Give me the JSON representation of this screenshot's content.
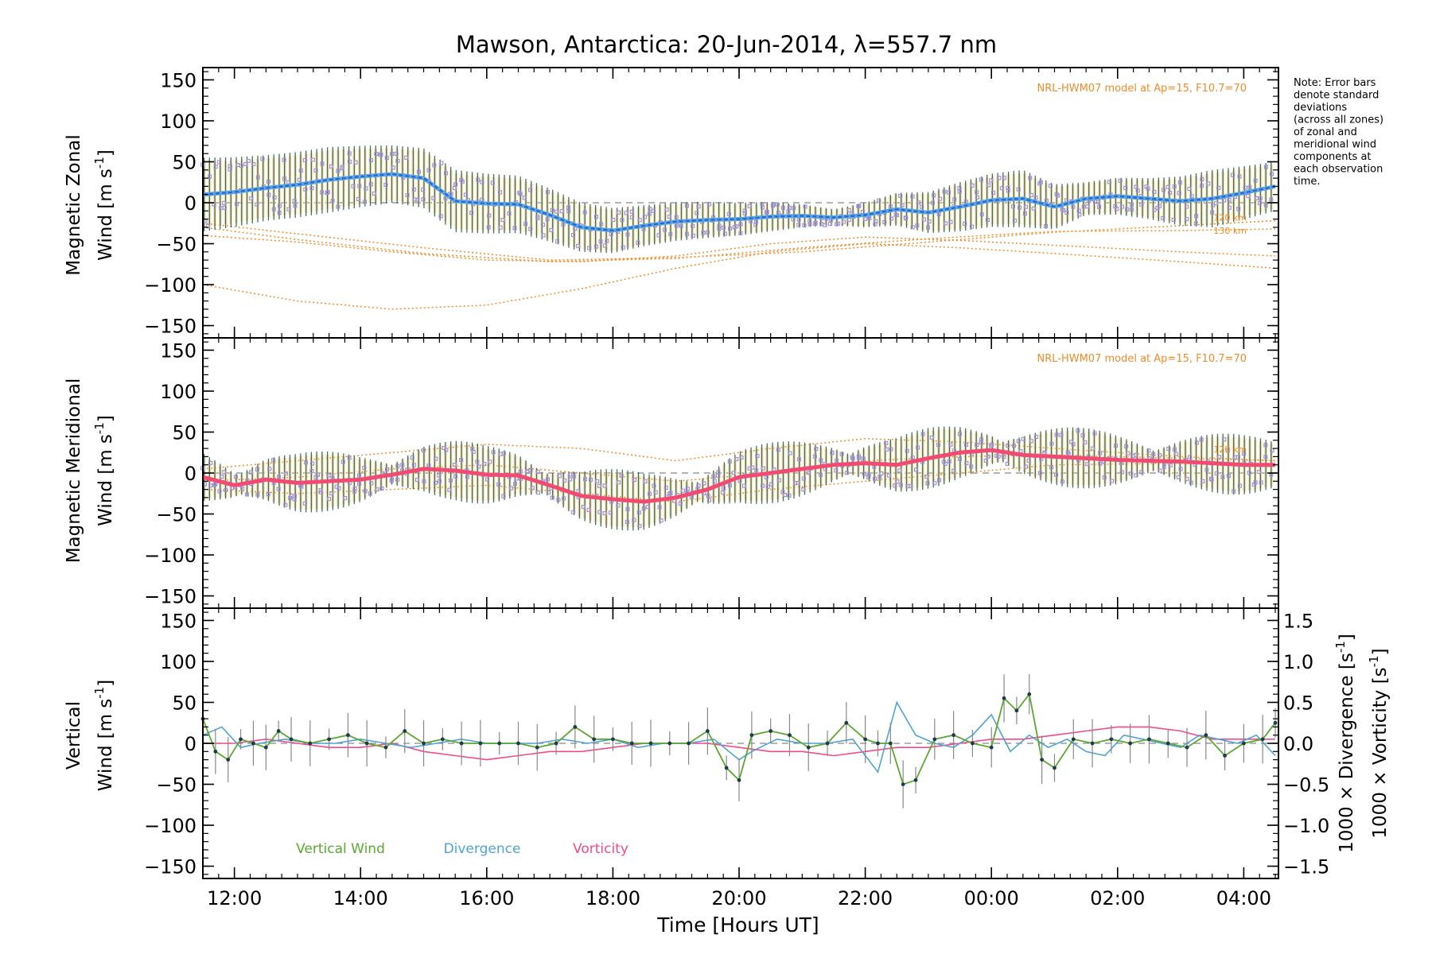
{
  "chart_data": [
    {
      "type": "line",
      "panel": "zonal",
      "title": "Mawson, Antarctica: 20-Jun-2014, λ=557.7 nm",
      "ylabel_line1": "Magnetic Zonal",
      "ylabel_line2": "Wind [m s",
      "ylabel_sup": "-1",
      "ylabel_close": "]",
      "ylim": [
        -165,
        165
      ],
      "yticks": [
        "150",
        "100",
        "50",
        "0",
        "−50",
        "−100",
        "−150"
      ],
      "model_label": "NRL-HWM07 model at Ap=15, F10.7=70",
      "altitude_labels": [
        "120 km",
        "130 km"
      ],
      "series": [
        {
          "name": "",
          "color": "#2a63d9",
          "x": [
            11.5,
            12.0,
            12.5,
            13.0,
            13.5,
            14.0,
            14.5,
            15.0,
            15.5,
            16.0,
            16.5,
            17.0,
            17.5,
            18.0,
            18.5,
            19.0,
            19.5,
            20.0,
            20.5,
            21.0,
            21.5,
            22.0,
            22.5,
            23.0,
            23.5,
            24.0,
            24.5,
            25.0,
            25.5,
            26.0,
            26.5,
            27.0,
            27.5,
            28.0,
            28.5
          ],
          "values": [
            10,
            13,
            18,
            22,
            28,
            32,
            35,
            30,
            2,
            -1,
            -2,
            -15,
            -30,
            -34,
            -28,
            -23,
            -21,
            -20,
            -17,
            -16,
            -18,
            -15,
            -8,
            -12,
            -5,
            3,
            5,
            -5,
            5,
            8,
            5,
            2,
            5,
            12,
            20
          ]
        },
        {
          "name": "",
          "color": "#9aa6d9",
          "x": [
            11.5,
            12.5,
            13.5,
            14.5,
            15.5,
            16.5,
            17.5,
            18.5,
            19.5,
            20.5,
            21.5,
            22.5,
            23.5,
            24.5,
            25.5,
            26.5,
            27.5,
            28.5
          ],
          "errors": [
            45,
            40,
            40,
            35,
            38,
            35,
            30,
            25,
            22,
            18,
            10,
            20,
            30,
            35,
            20,
            25,
            35,
            30
          ]
        },
        {
          "name": "model-120km",
          "color": "#f08c28",
          "x": [
            11.5,
            13.0,
            15.0,
            17.0,
            19.0,
            21.0,
            23.0,
            25.0,
            27.0,
            28.5
          ],
          "values": [
            -25,
            -38,
            -55,
            -70,
            -67,
            -60,
            -48,
            -36,
            -28,
            -22
          ]
        },
        {
          "name": "model-130km",
          "color": "#f08c28",
          "x": [
            11.5,
            13.0,
            15.0,
            17.0,
            19.0,
            21.0,
            23.0,
            25.0,
            27.0,
            28.5
          ],
          "values": [
            -30,
            -45,
            -62,
            -72,
            -68,
            -55,
            -44,
            -35,
            -34,
            -32
          ]
        },
        {
          "name": "model-low",
          "color": "#f08c28",
          "x": [
            11.5,
            13.0,
            14.5,
            16.0,
            17.5,
            19.0,
            20.5,
            22.0,
            23.5,
            25.0,
            27.0,
            28.5
          ],
          "values": [
            -100,
            -120,
            -130,
            -125,
            -105,
            -80,
            -60,
            -50,
            -55,
            -62,
            -72,
            -80
          ]
        },
        {
          "name": "model-mid",
          "color": "#f08c28",
          "x": [
            11.5,
            13.0,
            14.5,
            16.0,
            17.5,
            19.0,
            20.5,
            22.0,
            23.5,
            25.0,
            27.0,
            28.5
          ],
          "values": [
            -40,
            -48,
            -60,
            -70,
            -72,
            -65,
            -50,
            -42,
            -46,
            -52,
            -60,
            -65
          ]
        }
      ]
    },
    {
      "type": "line",
      "panel": "meridional",
      "ylabel_line1": "Magnetic Meridional",
      "ylabel_line2": "Wind [m s",
      "ylabel_sup": "-1",
      "ylabel_close": "]",
      "ylim": [
        -165,
        165
      ],
      "yticks": [
        "150",
        "100",
        "50",
        "0",
        "−50",
        "−100",
        "−150"
      ],
      "model_label": "NRL-HWM07 model at Ap=15, F10.7=70",
      "altitude_labels": [
        "120 km",
        "130 km"
      ],
      "series": [
        {
          "name": "",
          "color": "#f24a72",
          "x": [
            11.5,
            12.0,
            12.5,
            13.0,
            13.5,
            14.0,
            14.5,
            15.0,
            15.5,
            16.0,
            16.5,
            17.0,
            17.5,
            18.0,
            18.5,
            19.0,
            19.5,
            20.0,
            20.5,
            21.0,
            21.5,
            22.0,
            22.5,
            23.0,
            23.5,
            24.0,
            24.5,
            25.0,
            25.5,
            26.0,
            26.5,
            27.0,
            27.5,
            28.0,
            28.5
          ],
          "values": [
            -5,
            -15,
            -8,
            -12,
            -10,
            -8,
            -2,
            5,
            3,
            -2,
            -3,
            -15,
            -28,
            -32,
            -35,
            -30,
            -20,
            -5,
            0,
            5,
            10,
            12,
            10,
            18,
            25,
            28,
            22,
            20,
            18,
            16,
            15,
            14,
            12,
            10,
            10
          ]
        },
        {
          "name": "model-a",
          "color": "#f08c28",
          "x": [
            11.5,
            13.0,
            14.5,
            16.0,
            17.5,
            19.0,
            20.5,
            22.0,
            23.5,
            25.0,
            27.0,
            28.5
          ],
          "values": [
            5,
            15,
            25,
            35,
            30,
            15,
            30,
            42,
            38,
            30,
            20,
            15
          ]
        },
        {
          "name": "model-b",
          "color": "#f08c28",
          "x": [
            11.5,
            13.0,
            14.5,
            16.0,
            17.5,
            19.0,
            20.5,
            22.0,
            23.5,
            25.0,
            27.0,
            28.5
          ],
          "values": [
            -10,
            -5,
            5,
            10,
            0,
            -10,
            0,
            15,
            20,
            22,
            18,
            15
          ]
        },
        {
          "name": "model-c",
          "color": "#f08c28",
          "x": [
            11.5,
            13.0,
            14.5,
            16.0,
            17.5,
            19.0,
            20.5,
            22.0,
            23.5,
            25.0,
            27.0,
            28.5
          ],
          "values": [
            -20,
            -25,
            -20,
            -15,
            -25,
            -35,
            -20,
            -10,
            0,
            10,
            12,
            10
          ]
        }
      ]
    },
    {
      "type": "line",
      "panel": "vertical",
      "ylabel_line1": "Vertical",
      "ylabel_line2": "Wind",
      "ylabel_unit": "[m s",
      "ylabel_sup": "-1",
      "ylabel_close": "]",
      "ylim": [
        -165,
        165
      ],
      "yticks": [
        "150",
        "100",
        "50",
        "0",
        "−50",
        "−100",
        "−150"
      ],
      "right_yticks": [
        "1.5",
        "1.0",
        "0.5",
        "0.0",
        "−0.5",
        "−1.0",
        "−1.5"
      ],
      "right_ylabel_div": "1000 × Divergence [s",
      "right_ylabel_vor": "1000 × Vorticity [s",
      "right_ylabel_sup": "-1",
      "right_ylabel_close": "]",
      "legend": [
        {
          "label": "Vertical Wind",
          "color": "#5aa832"
        },
        {
          "label": "Divergence",
          "color": "#4fa3d6"
        },
        {
          "label": "Vorticity",
          "color": "#f24a8c"
        }
      ],
      "series": [
        {
          "name": "Vertical Wind",
          "color": "#5aa832",
          "x": [
            11.5,
            11.7,
            11.9,
            12.1,
            12.3,
            12.5,
            12.7,
            12.9,
            13.2,
            13.5,
            13.8,
            14.1,
            14.4,
            14.7,
            15.0,
            15.3,
            15.6,
            15.9,
            16.2,
            16.5,
            16.8,
            17.1,
            17.4,
            17.7,
            18.0,
            18.3,
            18.6,
            18.9,
            19.2,
            19.5,
            19.8,
            20.0,
            20.2,
            20.5,
            20.8,
            21.1,
            21.4,
            21.7,
            22.0,
            22.2,
            22.4,
            22.6,
            22.8,
            23.1,
            23.4,
            23.7,
            24.0,
            24.2,
            24.4,
            24.6,
            24.8,
            25.0,
            25.3,
            25.6,
            25.9,
            26.2,
            26.5,
            26.8,
            27.1,
            27.4,
            27.7,
            28.0,
            28.3,
            28.5
          ],
          "values": [
            30,
            -10,
            -20,
            5,
            0,
            -5,
            15,
            5,
            0,
            5,
            10,
            0,
            -5,
            15,
            0,
            5,
            0,
            0,
            0,
            0,
            -5,
            0,
            20,
            5,
            5,
            0,
            0,
            0,
            0,
            15,
            -30,
            -45,
            10,
            15,
            10,
            -5,
            0,
            25,
            5,
            0,
            0,
            -50,
            -45,
            5,
            10,
            0,
            -5,
            55,
            40,
            60,
            -20,
            -30,
            5,
            0,
            5,
            0,
            5,
            0,
            -5,
            10,
            -15,
            0,
            5,
            25
          ]
        },
        {
          "name": "Divergence",
          "color": "#4fa3d6",
          "x": [
            11.5,
            11.8,
            12.1,
            12.4,
            12.8,
            13.2,
            13.6,
            14.0,
            14.4,
            14.8,
            15.2,
            15.6,
            16.0,
            16.4,
            16.8,
            17.2,
            17.6,
            18.0,
            18.4,
            18.8,
            19.2,
            19.6,
            20.0,
            20.2,
            20.6,
            21.0,
            21.4,
            21.8,
            22.2,
            22.5,
            22.8,
            23.1,
            23.4,
            23.7,
            24.0,
            24.3,
            24.6,
            24.9,
            25.2,
            25.5,
            25.8,
            26.1,
            26.4,
            26.7,
            27.0,
            27.3,
            27.6,
            27.9,
            28.2,
            28.5
          ],
          "values": [
            0.1,
            0.2,
            -0.05,
            0.0,
            0.05,
            0.0,
            0.0,
            0.05,
            0.0,
            -0.05,
            0.0,
            0.05,
            0.0,
            0.0,
            0.0,
            0.05,
            0.0,
            0.05,
            -0.05,
            0.0,
            0.0,
            0.05,
            -0.2,
            -0.1,
            0.05,
            0.0,
            0.0,
            0.05,
            -0.35,
            0.5,
            0.1,
            0.0,
            -0.05,
            0.1,
            0.35,
            -0.1,
            0.1,
            -0.05,
            0.05,
            -0.1,
            -0.15,
            0.1,
            0.05,
            0.0,
            -0.05,
            0.1,
            0.05,
            0.0,
            0.1,
            -0.15
          ]
        },
        {
          "name": "Vorticity",
          "color": "#f24a8c",
          "x": [
            11.5,
            12.0,
            12.5,
            13.0,
            13.5,
            14.0,
            14.5,
            15.0,
            15.5,
            16.0,
            16.5,
            17.0,
            17.5,
            18.0,
            18.5,
            19.0,
            19.5,
            20.0,
            20.5,
            21.0,
            21.5,
            22.0,
            22.5,
            23.0,
            23.5,
            24.0,
            24.5,
            25.0,
            25.5,
            26.0,
            26.5,
            27.0,
            27.5,
            28.0,
            28.5
          ],
          "values": [
            0.0,
            0.0,
            0.05,
            0.0,
            -0.05,
            -0.05,
            0.0,
            -0.1,
            -0.15,
            -0.2,
            -0.15,
            -0.1,
            -0.1,
            -0.05,
            0.0,
            0.0,
            0.0,
            -0.05,
            -0.1,
            -0.1,
            -0.15,
            -0.1,
            -0.05,
            -0.05,
            0.0,
            0.05,
            0.05,
            0.1,
            0.15,
            0.2,
            0.2,
            0.15,
            0.05,
            0.05,
            0.05
          ]
        }
      ]
    }
  ],
  "xaxis": {
    "label": "Time [Hours UT]",
    "xlim": [
      11.5,
      28.55
    ],
    "ticks": [
      {
        "value": 12,
        "label": "12:00"
      },
      {
        "value": 14,
        "label": "14:00"
      },
      {
        "value": 16,
        "label": "16:00"
      },
      {
        "value": 18,
        "label": "18:00"
      },
      {
        "value": 20,
        "label": "20:00"
      },
      {
        "value": 22,
        "label": "22:00"
      },
      {
        "value": 24,
        "label": "00:00"
      },
      {
        "value": 26,
        "label": "02:00"
      },
      {
        "value": 28,
        "label": "04:00"
      }
    ]
  },
  "note": [
    "Note: Error bars",
    "denote standard",
    "deviations",
    "(across all zones)",
    "of zonal and",
    "meridional wind",
    "components at",
    "each observation",
    "time."
  ],
  "colors": {
    "model": "#f08c28",
    "zonal": "#2a63d9",
    "zonal_light": "#5aa8e0",
    "meridional": "#f24a72",
    "scatter": "#9a8fd9",
    "errbar": "#1f5a3a",
    "shade": "#f5d7a0",
    "vertical": "#5aa832",
    "divergence": "#4fa3d6",
    "vorticity": "#f24a8c"
  }
}
